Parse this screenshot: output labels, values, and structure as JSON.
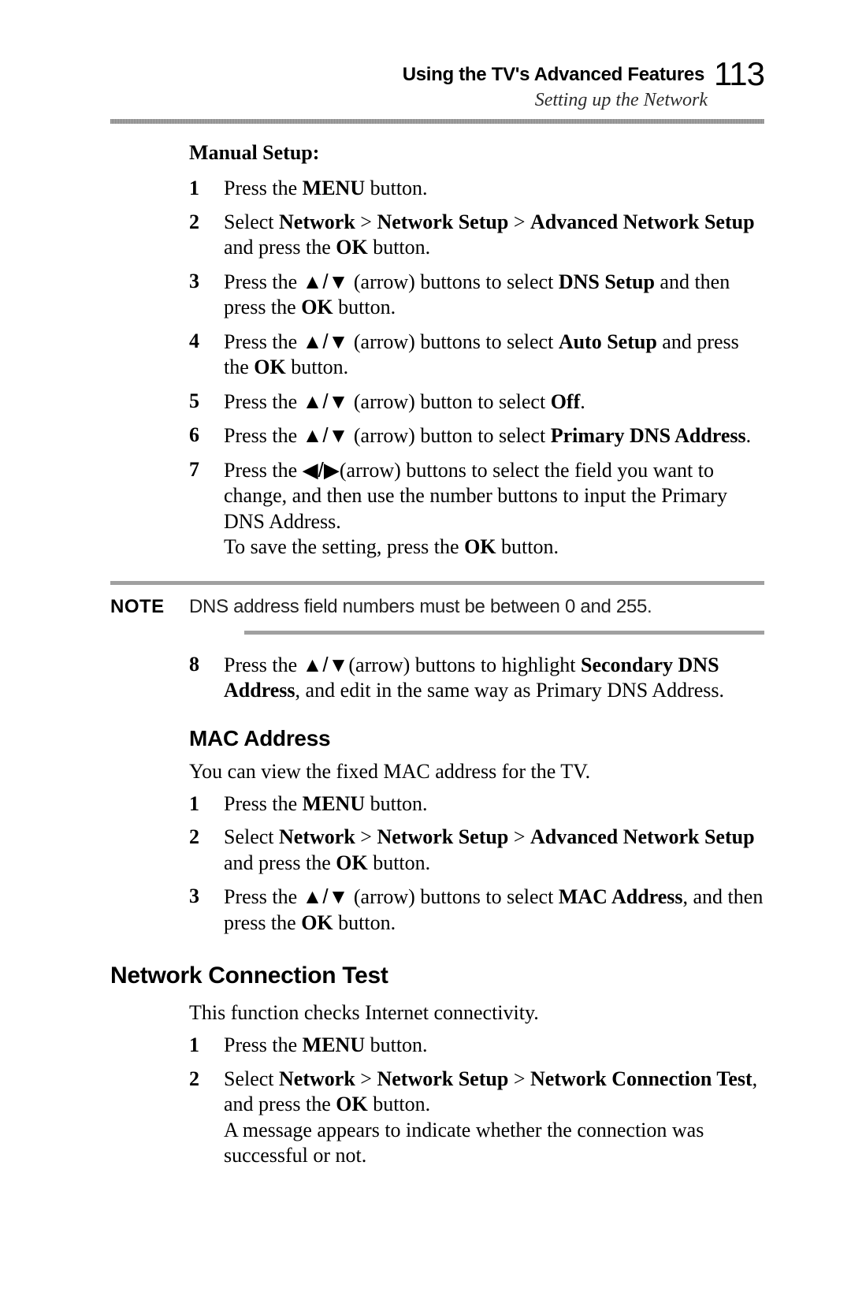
{
  "header": {
    "title": "Using the TV's Advanced Features",
    "subtitle": "Setting up the Network",
    "page_number": "113"
  },
  "manual_setup": {
    "title": "Manual Setup:",
    "steps": [
      {
        "n": "1",
        "pre": "Press the ",
        "b1": "MENU",
        "post": " button."
      },
      {
        "n": "2",
        "t1": "Select ",
        "b1": "Network",
        "t2": " > ",
        "b2": "Network Setup",
        "t3": " > ",
        "b3": "Advanced Network Setup",
        "t4": " and press the ",
        "b4": "OK",
        "t5": " button."
      },
      {
        "n": "3",
        "t1": "Press the ",
        "ar": "▲/▼",
        "t2": " (arrow) buttons to select ",
        "b1": "DNS Setup",
        "t3": " and then press  the ",
        "b2": "OK",
        "t4": " button."
      },
      {
        "n": "4",
        "t1": "Press the ",
        "ar": "▲/▼",
        "t2": " (arrow) buttons to select ",
        "b1": "Auto Setup",
        "t3": " and press the ",
        "b2": "OK",
        "t4": " button."
      },
      {
        "n": "5",
        "t1": "Press the ",
        "ar": "▲/▼",
        "t2": " (arrow) button to select ",
        "b1": "Off",
        "t3": "."
      },
      {
        "n": "6",
        "t1": "Press the ",
        "ar": "▲/▼",
        "t2": " (arrow) button to select ",
        "b1": "Primary DNS Address",
        "t3": "."
      },
      {
        "n": "7",
        "t1": "Press the ",
        "ar": "◀/▶",
        "t2": "(arrow) buttons to select the field you want to change, and then use the number buttons to input the Primary DNS Address.",
        "br": "To save the setting, press the ",
        "b1": "OK",
        "t3": " button."
      }
    ],
    "step8": {
      "n": "8",
      "t1": "Press the ",
      "ar": "▲/▼",
      "t2": "(arrow) buttons to highlight ",
      "b1": "Secondary DNS Address",
      "t3": ", and edit in the same way as Primary DNS Address."
    }
  },
  "note": {
    "label": "NOTE",
    "text": "DNS address field numbers must be between 0 and 255."
  },
  "mac": {
    "heading": "MAC Address",
    "intro": "You can view the fixed MAC address for the TV.",
    "steps": [
      {
        "n": "1",
        "pre": "Press the ",
        "b1": "MENU",
        "post": " button."
      },
      {
        "n": "2",
        "t1": "Select ",
        "b1": "Network",
        "t2": " > ",
        "b2": "Network Setup",
        "t3": " > ",
        "b3": "Advanced Network Setup",
        "t4": " and press the ",
        "b4": "OK",
        "t5": " button."
      },
      {
        "n": "3",
        "t1": "Press the ",
        "ar": "▲/▼",
        "t2": " (arrow) buttons to select ",
        "b1": "MAC Address",
        "t3": ", and then press the ",
        "b2": "OK",
        "t4": " button."
      }
    ]
  },
  "nct": {
    "heading": "Network Connection Test",
    "intro": "This function checks Internet connectivity.",
    "steps": [
      {
        "n": "1",
        "pre": "Press the ",
        "b1": "MENU",
        "post": " button."
      },
      {
        "n": "2",
        "t1": "Select ",
        "b1": "Network",
        "t2": " > ",
        "b2": "Network Setup",
        "t3": " > ",
        "b3": "Network Connection Test",
        "t4": ", and press the ",
        "b4": "OK",
        "t5": " button.",
        "extra": "A message appears to indicate whether the connection was successful or not."
      }
    ]
  }
}
